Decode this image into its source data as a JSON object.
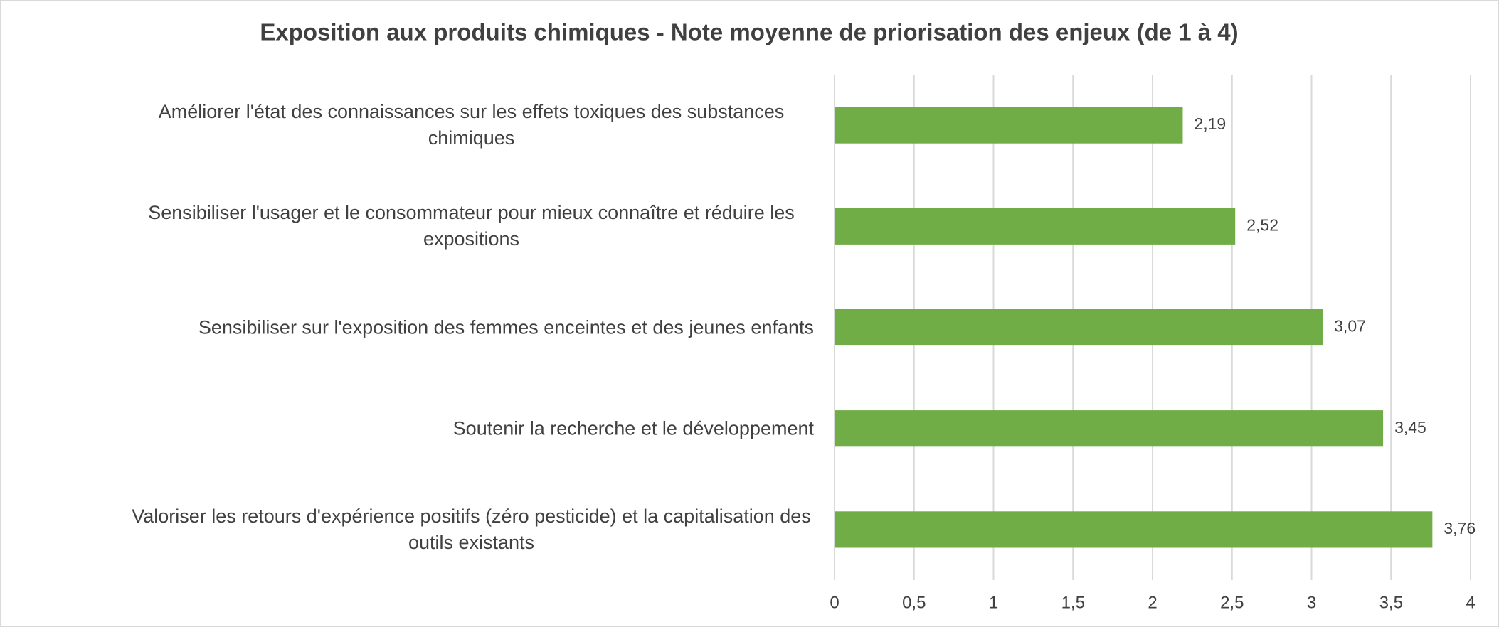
{
  "chart_data": {
    "type": "hbar",
    "title": "Exposition aux produits chimiques - Note moyenne de priorisation des enjeux (de 1 à 4)",
    "categories": [
      "Améliorer l'état des connaissances sur les effets toxiques des substances chimiques",
      "Sensibiliser l'usager et le consommateur pour mieux connaître et réduire les expositions",
      "Sensibiliser sur l'exposition des femmes enceintes et des jeunes enfants",
      "Soutenir la recherche et le développement",
      "Valoriser les retours d'expérience positifs (zéro pesticide) et la capitalisation des outils existants"
    ],
    "values": [
      2.19,
      2.52,
      3.07,
      3.45,
      3.76
    ],
    "value_labels": [
      "2,19",
      "2,52",
      "3,07",
      "3,45",
      "3,76"
    ],
    "color": "#70ad47",
    "xlim": [
      0,
      4
    ],
    "xticks": [
      0,
      {
        "value": 0.5,
        "label": "0,5"
      },
      1,
      {
        "value": 1.5,
        "label": "1,5"
      },
      2,
      {
        "value": 2.5,
        "label": "2,5"
      },
      3,
      {
        "value": 3.5,
        "label": "3,5"
      },
      4
    ],
    "grid": true
  }
}
